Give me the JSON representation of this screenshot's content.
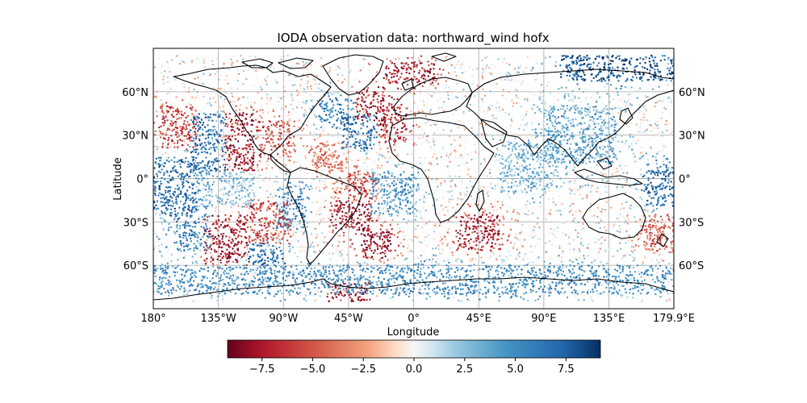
{
  "figure": {
    "title": "IODA observation data: northward_wind hofx"
  },
  "map": {
    "projection": "plate-carree",
    "extent": {
      "lon": [
        -180,
        179.9
      ],
      "lat": [
        -90,
        90
      ]
    },
    "xlabel": "Longitude",
    "ylabel": "Latitude",
    "grid": true,
    "coastlines": true,
    "lon_ticks": [
      {
        "value": -180,
        "label": "180°"
      },
      {
        "value": -135,
        "label": "135°W"
      },
      {
        "value": -90,
        "label": "90°W"
      },
      {
        "value": -45,
        "label": "45°W"
      },
      {
        "value": 0,
        "label": "0°"
      },
      {
        "value": 45,
        "label": "45°E"
      },
      {
        "value": 90,
        "label": "90°E"
      },
      {
        "value": 135,
        "label": "135°E"
      },
      {
        "value": 179.9,
        "label": "179.9°E"
      }
    ],
    "lat_ticks": [
      {
        "value": 60,
        "label": "60°N"
      },
      {
        "value": 30,
        "label": "30°N"
      },
      {
        "value": 0,
        "label": "0°"
      },
      {
        "value": -30,
        "label": "30°S"
      },
      {
        "value": -60,
        "label": "60°S"
      }
    ],
    "colormap": "RdBu",
    "colorbar": {
      "orientation": "horizontal",
      "range": [
        -9.2,
        9.2
      ],
      "ticks": [
        {
          "value": -7.5,
          "label": "−7.5"
        },
        {
          "value": -5.0,
          "label": "−5.0"
        },
        {
          "value": -2.5,
          "label": "−2.5"
        },
        {
          "value": 0.0,
          "label": "0.0"
        },
        {
          "value": 2.5,
          "label": "2.5"
        },
        {
          "value": 5.0,
          "label": "5.0"
        },
        {
          "value": 7.5,
          "label": "7.5"
        }
      ]
    },
    "colors": {
      "strong_negative": "#67001f",
      "neutral": "#f7f7f7",
      "strong_positive": "#053061",
      "grid": "#b0b0b0",
      "coastline": "#000000"
    }
  },
  "chart_data": {
    "type": "scatter",
    "title": "IODA observation data: northward_wind hofx",
    "xlabel": "Longitude",
    "ylabel": "Latitude",
    "xlim": [
      -180,
      179.9
    ],
    "ylim": [
      -90,
      90
    ],
    "value_range": [
      -9.2,
      9.2
    ],
    "regions": [
      {
        "lon": [
          -180,
          -150
        ],
        "lat": [
          -25,
          15
        ],
        "value": 7
      },
      {
        "lon": [
          -165,
          -140
        ],
        "lat": [
          -50,
          -25
        ],
        "value": 6
      },
      {
        "lon": [
          -145,
          -115
        ],
        "lat": [
          -60,
          -25
        ],
        "value": -8
      },
      {
        "lon": [
          -175,
          -150
        ],
        "lat": [
          20,
          50
        ],
        "value": -6
      },
      {
        "lon": [
          -155,
          -130
        ],
        "lat": [
          5,
          45
        ],
        "value": 7
      },
      {
        "lon": [
          -130,
          -110
        ],
        "lat": [
          5,
          45
        ],
        "value": -8
      },
      {
        "lon": [
          -150,
          -110
        ],
        "lat": [
          -20,
          5
        ],
        "value": 3
      },
      {
        "lon": [
          -115,
          -85
        ],
        "lat": [
          -45,
          -15
        ],
        "value": -6
      },
      {
        "lon": [
          -115,
          -90
        ],
        "lat": [
          -60,
          -45
        ],
        "value": 7
      },
      {
        "lon": [
          -95,
          -75
        ],
        "lat": [
          -35,
          -5
        ],
        "value": 6
      },
      {
        "lon": [
          -105,
          -85
        ],
        "lat": [
          15,
          40
        ],
        "value": -5
      },
      {
        "lon": [
          -70,
          -45
        ],
        "lat": [
          5,
          25
        ],
        "value": -4
      },
      {
        "lon": [
          -55,
          -30
        ],
        "lat": [
          -35,
          -15
        ],
        "value": -8
      },
      {
        "lon": [
          -45,
          -25
        ],
        "lat": [
          -15,
          5
        ],
        "value": -6
      },
      {
        "lon": [
          -35,
          -15
        ],
        "lat": [
          -55,
          -35
        ],
        "value": -8
      },
      {
        "lon": [
          -50,
          -25
        ],
        "lat": [
          20,
          45
        ],
        "value": 7
      },
      {
        "lon": [
          -25,
          -5
        ],
        "lat": [
          25,
          50
        ],
        "value": -7
      },
      {
        "lon": [
          -65,
          -40
        ],
        "lat": [
          40,
          55
        ],
        "value": 6
      },
      {
        "lon": [
          -40,
          -20
        ],
        "lat": [
          40,
          60
        ],
        "value": -8
      },
      {
        "lon": [
          -30,
          0
        ],
        "lat": [
          -25,
          5
        ],
        "value": 5
      },
      {
        "lon": [
          -60,
          -30
        ],
        "lat": [
          -85,
          -72
        ],
        "value": -8
      },
      {
        "lon": [
          30,
          60
        ],
        "lat": [
          -50,
          -25
        ],
        "value": -7
      },
      {
        "lon": [
          -20,
          15
        ],
        "lat": [
          65,
          80
        ],
        "value": -7
      },
      {
        "lon": [
          100,
          180
        ],
        "lat": [
          68,
          85
        ],
        "value": 8
      },
      {
        "lon": [
          160,
          180
        ],
        "lat": [
          -20,
          10
        ],
        "value": 7
      },
      {
        "lon": [
          160,
          180
        ],
        "lat": [
          -50,
          -25
        ],
        "value": -5
      },
      {
        "lon": [
          60,
          100
        ],
        "lat": [
          -10,
          25
        ],
        "value": 3
      },
      {
        "lon": [
          90,
          140
        ],
        "lat": [
          10,
          50
        ],
        "value": 4
      },
      {
        "lon": [
          -180,
          180
        ],
        "lat": [
          -80,
          -60
        ],
        "value": 5
      }
    ]
  }
}
